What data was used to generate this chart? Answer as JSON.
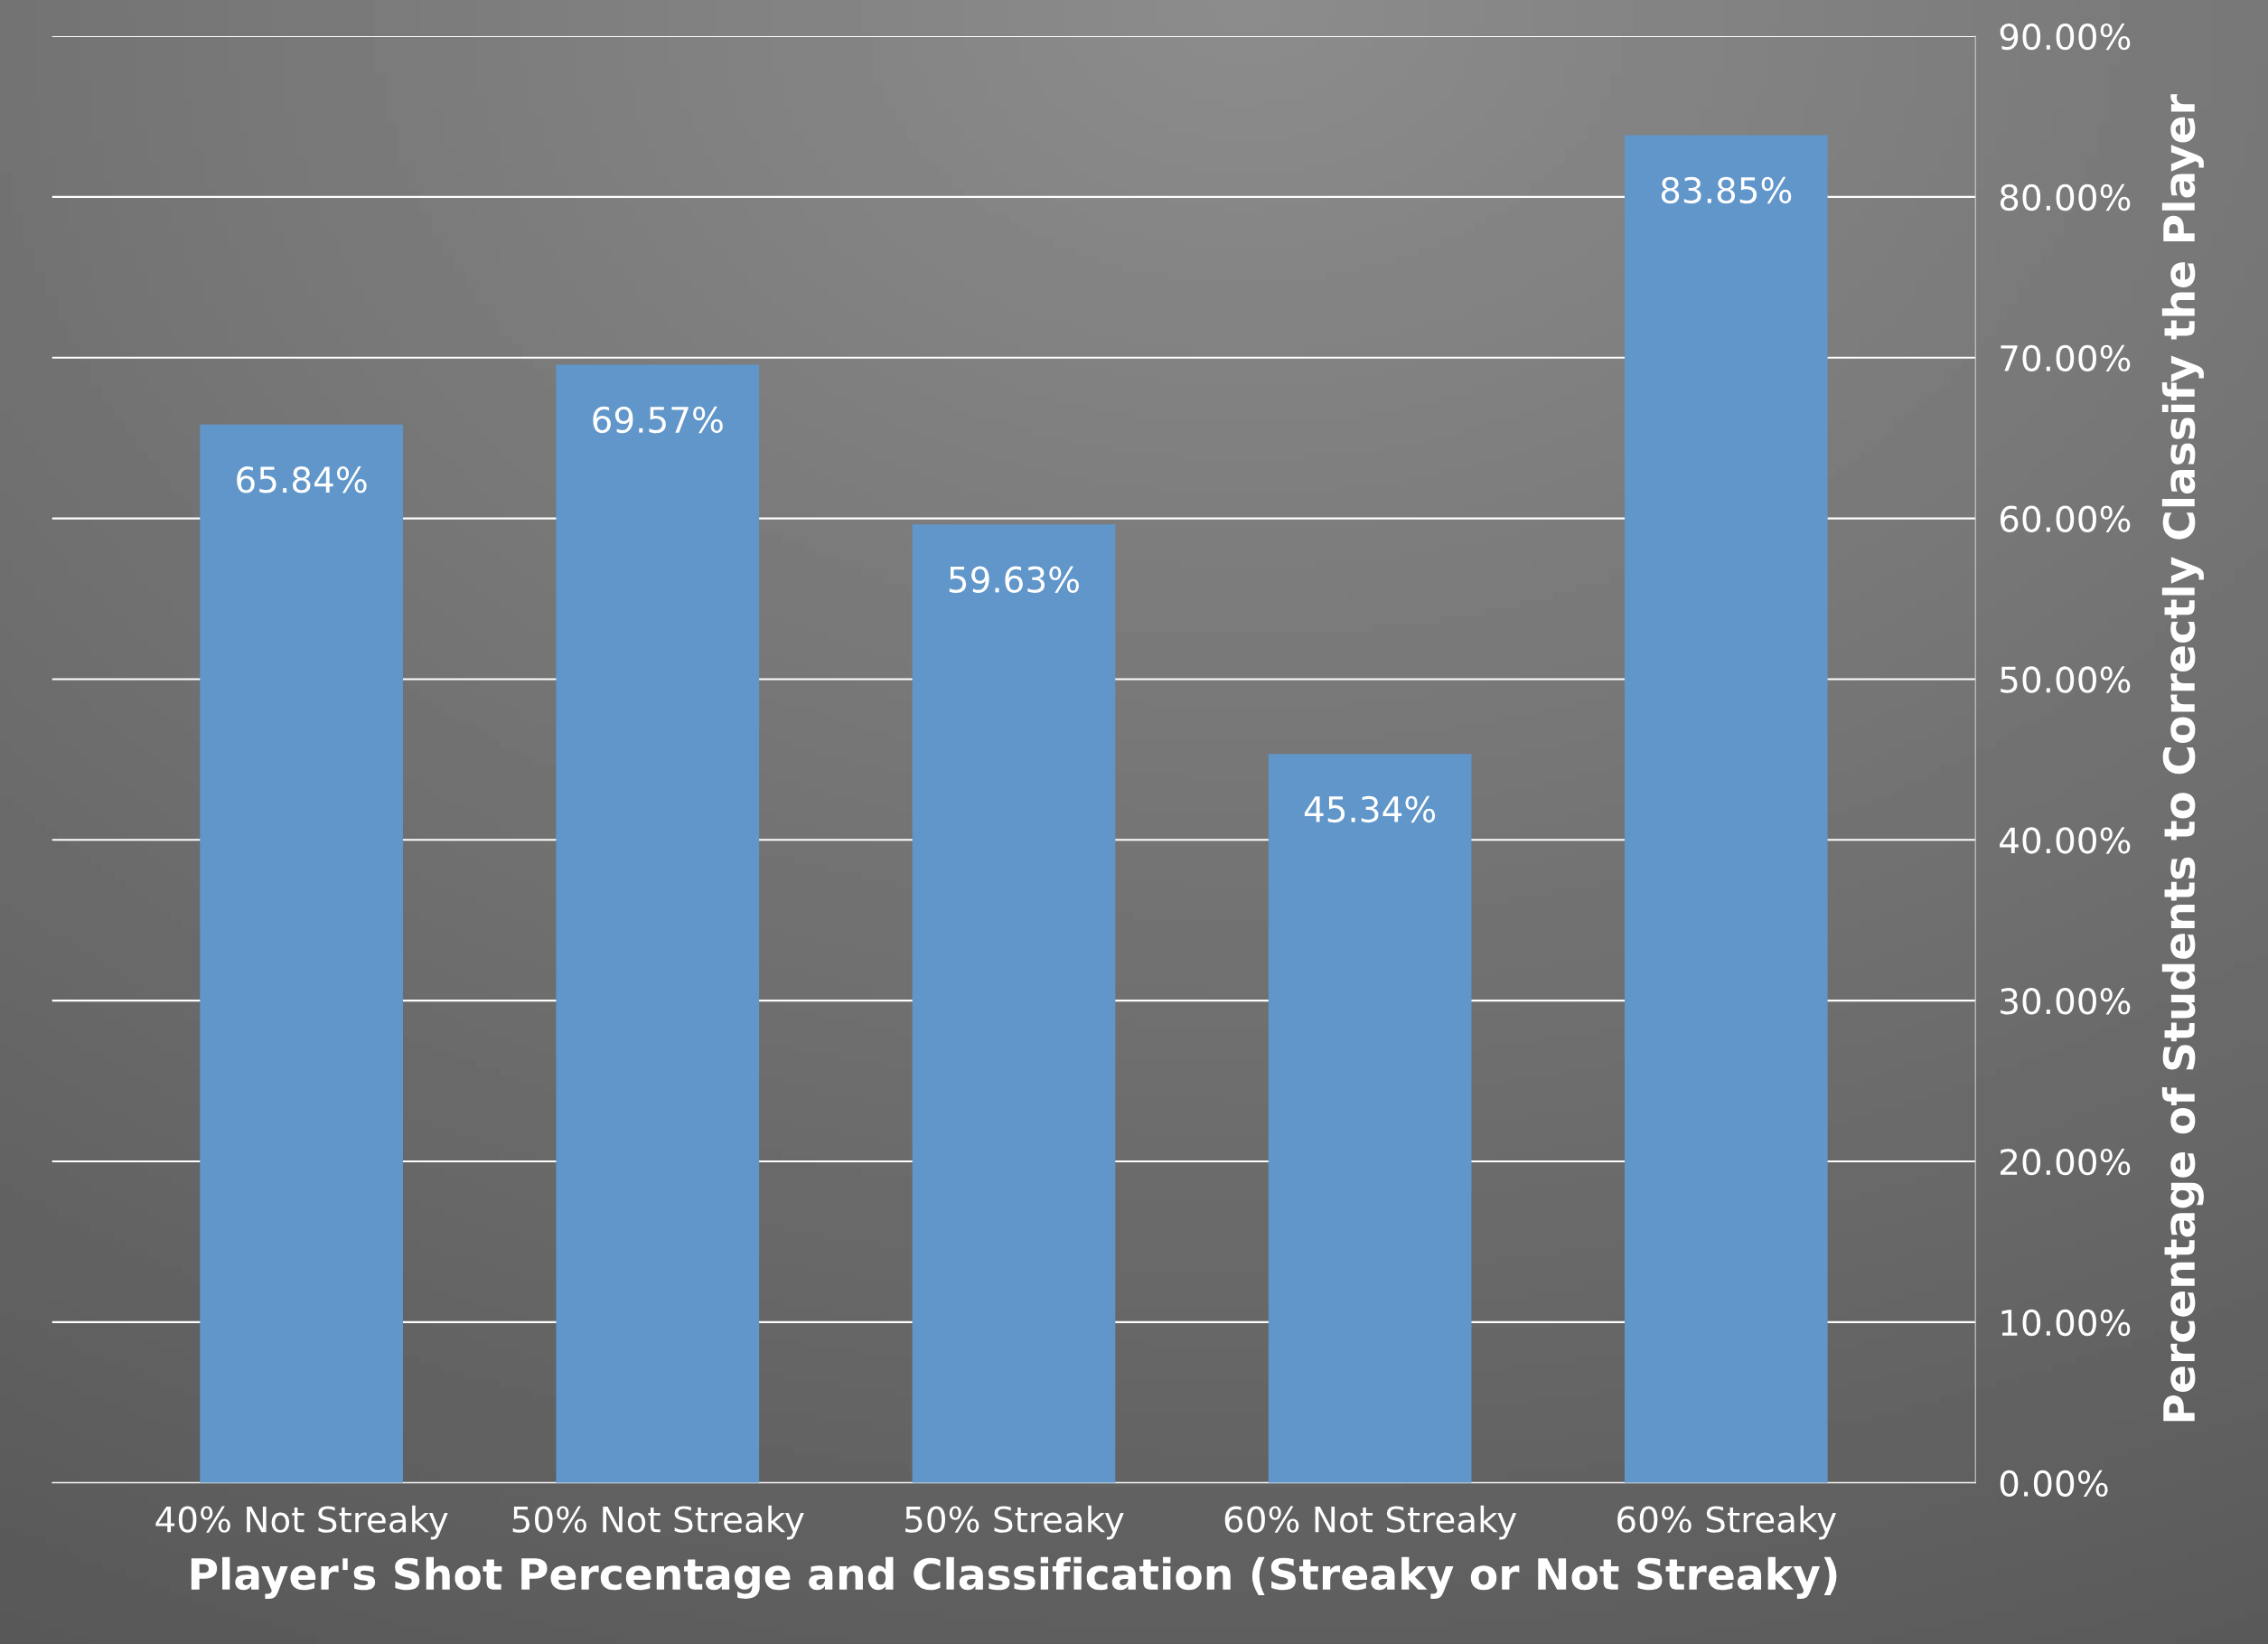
{
  "chart_data": {
    "type": "bar",
    "xlabel": "Player's Shot Percentage and Classification (Streaky or Not Streaky)",
    "ylabel": "Percentage of Students to Correctly Classify the Player",
    "categories": [
      "40% Not Streaky",
      "50% Not Streaky",
      "50% Streaky",
      "60% Not Streaky",
      "60% Streaky"
    ],
    "values": [
      65.84,
      69.57,
      59.63,
      45.34,
      83.85
    ],
    "value_labels": [
      "65.84%",
      "69.57%",
      "59.63%",
      "45.34%",
      "83.85%"
    ],
    "color": "#6096c9",
    "ylim": [
      0,
      90
    ],
    "yticks": [
      {
        "value": 0,
        "label": "0.00%"
      },
      {
        "value": 10,
        "label": "10.00%"
      },
      {
        "value": 20,
        "label": "20.00%"
      },
      {
        "value": 30,
        "label": "30.00%"
      },
      {
        "value": 40,
        "label": "40.00%"
      },
      {
        "value": 50,
        "label": "50.00%"
      },
      {
        "value": 60,
        "label": "60.00%"
      },
      {
        "value": 70,
        "label": "70.00%"
      },
      {
        "value": 80,
        "label": "80.00%"
      },
      {
        "value": 90,
        "label": "90.00%"
      }
    ],
    "grid": "y",
    "legend": false
  }
}
